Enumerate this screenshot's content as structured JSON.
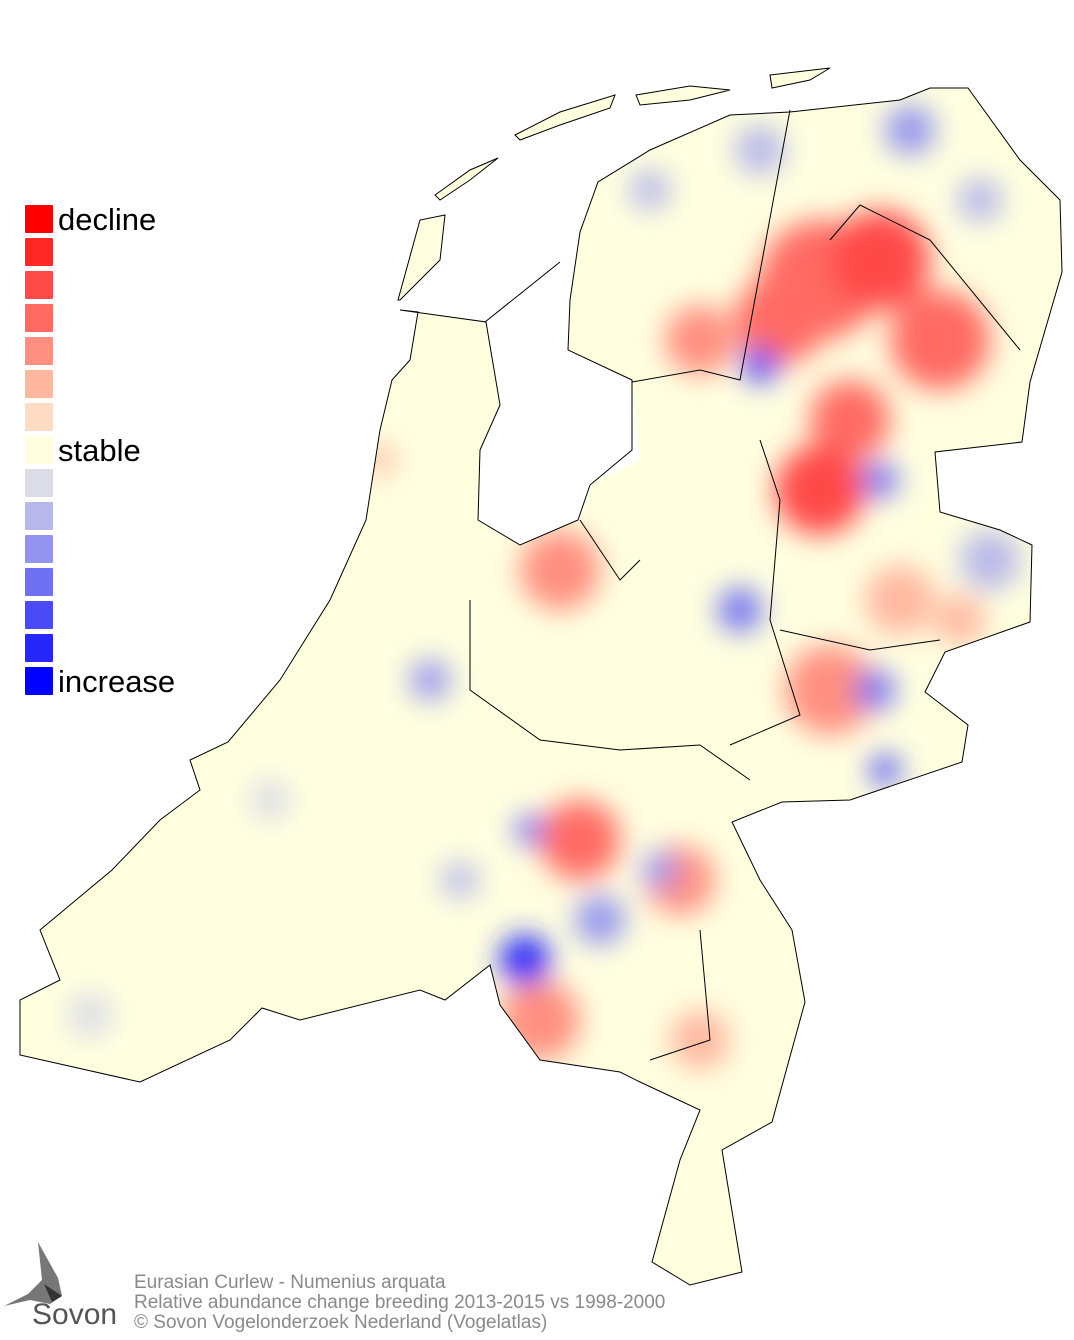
{
  "legend": {
    "items": [
      {
        "color": "#ff0000",
        "label": "decline"
      },
      {
        "color": "#ff2626",
        "label": ""
      },
      {
        "color": "#ff4a4a",
        "label": ""
      },
      {
        "color": "#ff6b63",
        "label": ""
      },
      {
        "color": "#ff8f80",
        "label": ""
      },
      {
        "color": "#ffb8a0",
        "label": ""
      },
      {
        "color": "#ffdcc4",
        "label": ""
      },
      {
        "color": "#ffffe0",
        "label": "stable"
      },
      {
        "color": "#dcdce6",
        "label": ""
      },
      {
        "color": "#b8b8ea",
        "label": ""
      },
      {
        "color": "#9494ee",
        "label": ""
      },
      {
        "color": "#7070f2",
        "label": ""
      },
      {
        "color": "#4a4af6",
        "label": ""
      },
      {
        "color": "#2626fa",
        "label": ""
      },
      {
        "color": "#0000ff",
        "label": "increase"
      }
    ]
  },
  "footer": {
    "species": "Eurasian Curlew - Numenius arquata",
    "description": "Relative abundance change breeding 2013-2015 vs 1998-2000",
    "copyright": "© Sovon Vogelonderzoek Nederland (Vogelatlas)"
  },
  "logo": {
    "text": "Sovon"
  }
}
